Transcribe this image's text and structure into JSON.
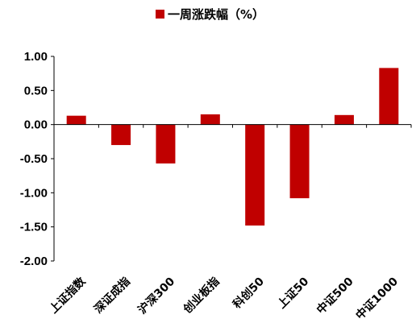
{
  "chart_data": {
    "type": "bar",
    "categories": [
      "上证指数",
      "深证成指",
      "沪深300",
      "创业板指",
      "科创50",
      "上证50",
      "中证500",
      "中证1000"
    ],
    "series": [
      {
        "name": "一周涨跌幅（%）",
        "values": [
          0.13,
          -0.3,
          -0.57,
          0.15,
          -1.48,
          -1.08,
          0.14,
          0.83
        ]
      }
    ],
    "ylim": [
      -2.0,
      1.0
    ],
    "yticks": [
      "1.00",
      "0.50",
      "0.00",
      "-0.50",
      "-1.00",
      "-1.50",
      "-2.00"
    ],
    "legend_position": "top",
    "bar_color": "#c00000",
    "grid": false
  }
}
